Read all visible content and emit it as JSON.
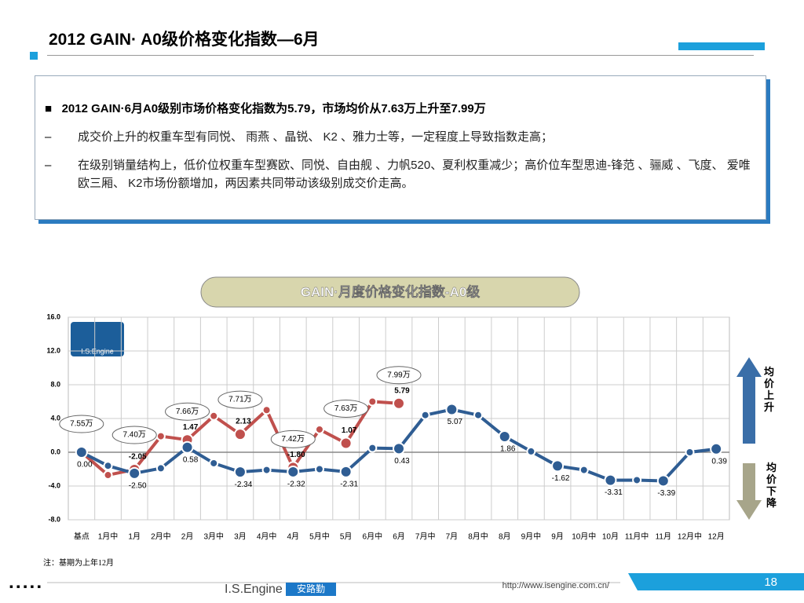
{
  "header": {
    "title": "2012 GAIN· A0级价格变化指数—6月"
  },
  "bullets": {
    "main": "2012 GAIN·6月A0级别市场价格变化指数为5.79，市场均价从7.63万上升至7.99万",
    "items": [
      "成交价上升的权重车型有同悦、 雨燕 、晶锐、 K2 、雅力士等，一定程度上导致指数走高；",
      "在级别销量结构上，低价位权重车型赛欧、同悦、自由舰 、力帆520、夏利权重减少；高价位车型思迪-锋范 、骊威 、飞度、 爱唯欧三厢、 K2市场份额增加，两因素共同带动该级别成交价走高。"
    ]
  },
  "chart_data": {
    "type": "line",
    "title": "GAIN·月度价格变化指数-A0级",
    "categories": [
      "基点",
      "1月中",
      "1月",
      "2月中",
      "2月",
      "3月中",
      "3月",
      "4月中",
      "4月",
      "5月中",
      "5月",
      "6月中",
      "6月",
      "7月中",
      "7月",
      "8月中",
      "8月",
      "9月中",
      "9月",
      "10月中",
      "10月",
      "11月中",
      "11月",
      "12月中",
      "12月"
    ],
    "series": [
      {
        "color": "#2f5d93",
        "values": [
          0,
          -1.6,
          -2.5,
          -1.9,
          0.58,
          -1.3,
          -2.34,
          -2.1,
          -2.32,
          -2.0,
          -2.31,
          0.5,
          0.43,
          4.4,
          5.07,
          4.4,
          1.86,
          0.1,
          -1.62,
          -2.1,
          -3.31,
          -3.3,
          -3.39,
          0.0,
          0.39
        ],
        "value_labels": [
          "0.00",
          null,
          "-2.50",
          null,
          "0.58",
          null,
          "-2.34",
          null,
          "-2.32",
          null,
          "-2.31",
          null,
          "0.43",
          null,
          "5.07",
          null,
          "1.86",
          null,
          "-1.62",
          null,
          "-3.31",
          null,
          "-3.39",
          null,
          "0.39"
        ]
      },
      {
        "color": "#c0504d",
        "values": [
          0,
          -2.7,
          -2.05,
          1.9,
          1.47,
          4.3,
          2.13,
          5.0,
          -1.8,
          2.7,
          1.07,
          6.0,
          5.79,
          null,
          null,
          null,
          null,
          null,
          null,
          null,
          null,
          null,
          null,
          null,
          null
        ],
        "value_labels": [
          null,
          null,
          "-2.05",
          null,
          "1.47",
          null,
          "2.13",
          null,
          "-1.80",
          null,
          "1.07",
          null,
          "5.79",
          null,
          null,
          null,
          null,
          null,
          null,
          null,
          null,
          null,
          null,
          null,
          null
        ]
      }
    ],
    "price_callouts": [
      "7.55万",
      "7.40万",
      "7.66万",
      "7.71万",
      "7.42万",
      "7.63万",
      "7.99万"
    ],
    "ylim": [
      -8,
      16
    ],
    "yticks": [
      {
        "value": 16,
        "label": "16.0"
      },
      {
        "value": 12,
        "label": "12.0"
      },
      {
        "value": 8,
        "label": "8.0"
      },
      {
        "value": 4,
        "label": "4.0"
      },
      {
        "value": 0,
        "label": "0.0"
      },
      {
        "value": -4,
        "label": "-4.0"
      },
      {
        "value": -8,
        "label": "-8.0"
      }
    ],
    "grid": true,
    "note": "注：基期为上年12月",
    "up_label": "均价上升",
    "down_label": "均价下降",
    "logo": "I.S.Engine"
  },
  "footer": {
    "brand": "I.S.Engine",
    "brand_cn": "安路勤",
    "url": "http://www.isengine.com.cn/",
    "page": "18"
  }
}
